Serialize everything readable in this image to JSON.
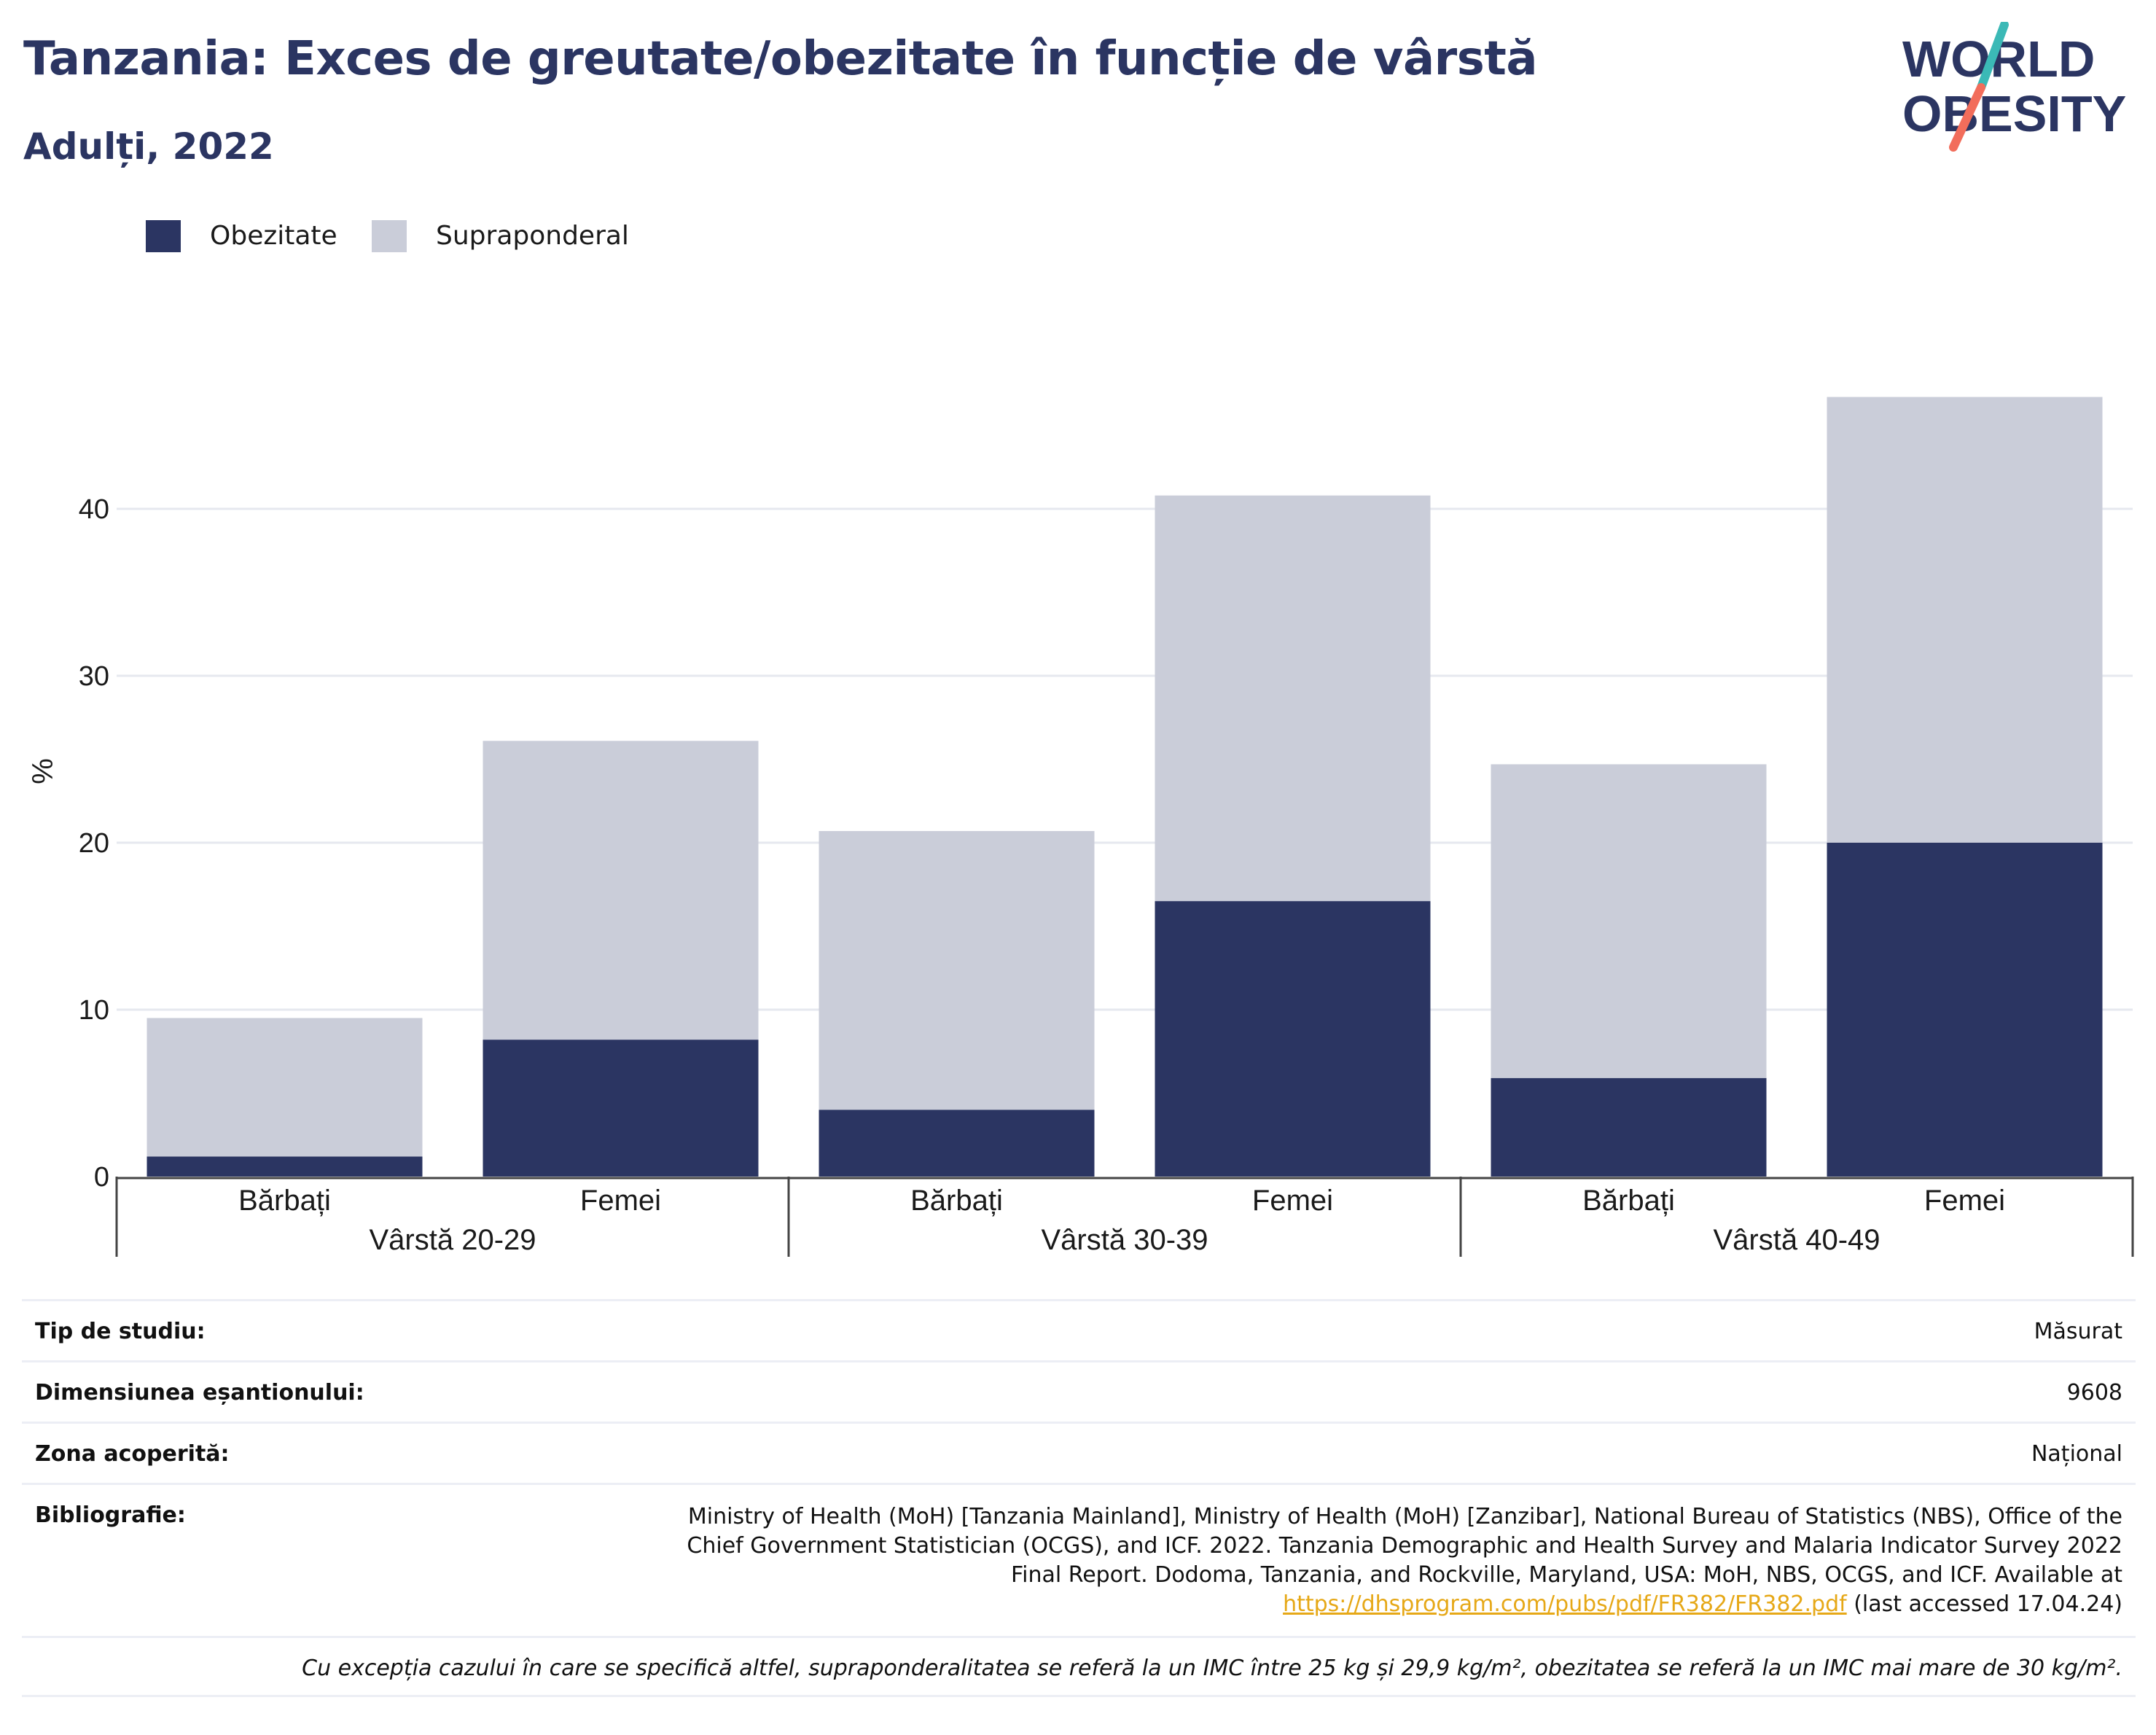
{
  "title": "Tanzania: Exces de greutate/obezitate în funcție de vârstă",
  "subtitle": "Adulți, 2022",
  "logo": {
    "line1": "WORLD",
    "line2": "OBESITY",
    "accent_teal": "#3bb9b6",
    "accent_coral": "#f26d5b"
  },
  "legend": [
    {
      "label": "Obezitate",
      "color": "#2b3562"
    },
    {
      "label": "Supraponderal",
      "color": "#cacdd9"
    }
  ],
  "chart_data": {
    "type": "bar",
    "stacked": true,
    "ylabel": "%",
    "ylim": [
      0,
      50
    ],
    "yticks": [
      0,
      10,
      20,
      30,
      40
    ],
    "grid": true,
    "legend_position": "top-left",
    "groups": [
      "Vârstă 20-29",
      "Vârstă 30-39",
      "Vârstă 40-49"
    ],
    "categories": [
      "Bărbați",
      "Femei",
      "Bărbați",
      "Femei",
      "Bărbați",
      "Femei"
    ],
    "series": [
      {
        "name": "Obezitate",
        "color": "#2b3562",
        "values": [
          1.2,
          8.2,
          4.0,
          16.5,
          5.9,
          20.0
        ]
      },
      {
        "name": "Supraponderal",
        "color": "#cacdd9",
        "values": [
          8.3,
          17.9,
          16.7,
          24.3,
          18.8,
          26.7
        ]
      }
    ]
  },
  "info": {
    "study_type_label": "Tip de studiu:",
    "study_type": "Măsurat",
    "sample_size_label": "Dimensiunea eșantionului:",
    "sample_size": "9608",
    "area_label": "Zona acoperită:",
    "area": "Național",
    "bibliography_label": "Bibliografie:",
    "bibliography_line1": "Ministry of Health (MoH) [Tanzania Mainland], Ministry of Health (MoH) [Zanzibar], National Bureau of Statistics (NBS), Office of the",
    "bibliography_line2": "Chief Government Statistician (OCGS), and ICF. 2022. Tanzania Demographic and Health Survey and Malaria Indicator Survey 2022",
    "bibliography_line3": "Final Report. Dodoma, Tanzania, and Rockville, Maryland, USA: MoH, NBS, OCGS, and ICF. Available at",
    "bibliography_link": "https://dhsprogram.com/pubs/pdf/FR382/FR382.pdf",
    "bibliography_accessed": " (last accessed 17.04.24)",
    "note": "Cu excepția cazului în care se specifică altfel, supraponderalitatea se referă la un IMC între 25 kg și 29,9 kg/m², obezitatea se referă la un IMC mai mare de 30 kg/m²."
  }
}
